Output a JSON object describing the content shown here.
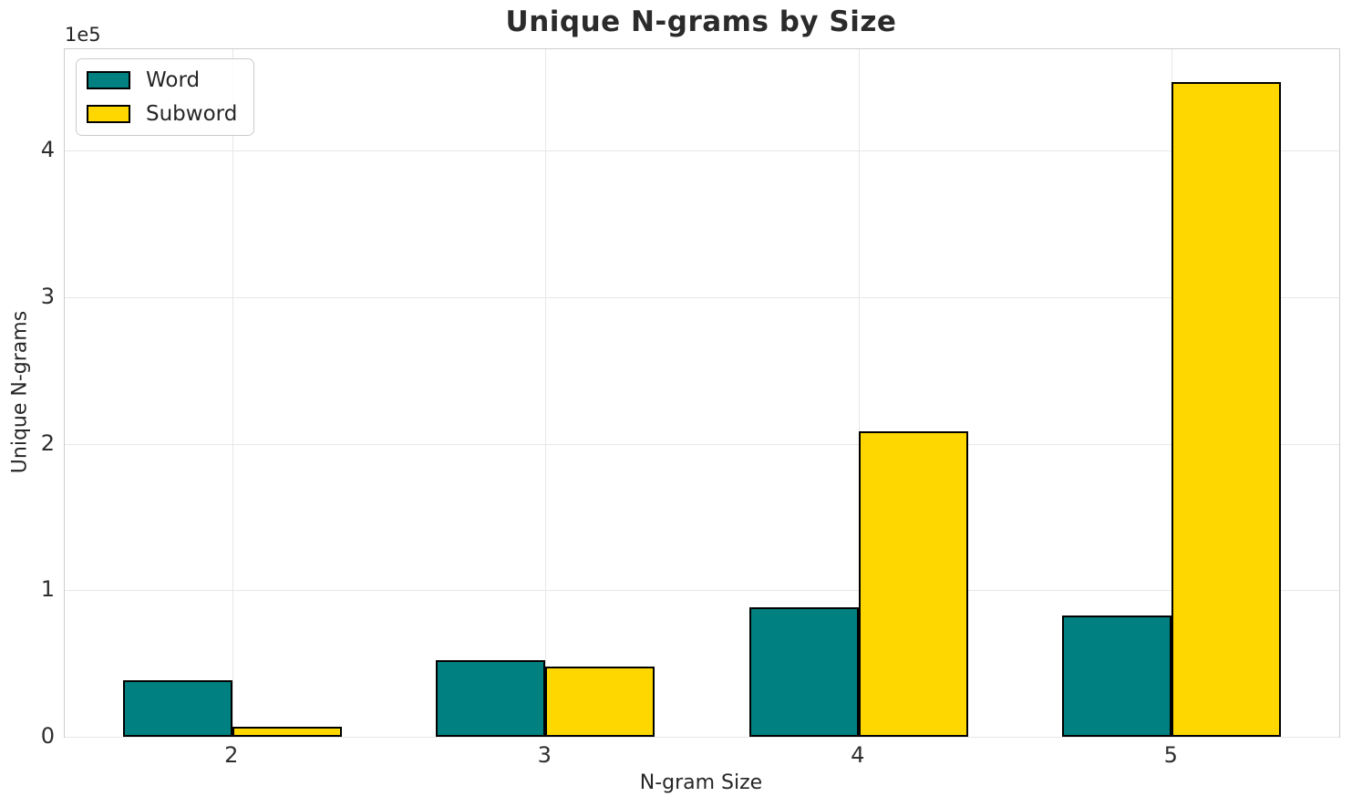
{
  "chart_data": {
    "type": "bar",
    "title": "Unique N-grams by Size",
    "xlabel": "N-gram Size",
    "ylabel": "Unique N-grams",
    "offset_text": "1e5",
    "categories": [
      "2",
      "3",
      "4",
      "5"
    ],
    "series": [
      {
        "name": "Word",
        "color": "#008080",
        "values": [
          38500,
          52500,
          88500,
          83000
        ]
      },
      {
        "name": "Subword",
        "color": "#FFD700",
        "values": [
          7000,
          48000,
          208500,
          447000
        ]
      }
    ],
    "bar_edge_color": "#000000",
    "ylim": [
      0,
      469350
    ],
    "yticks": [
      0,
      100000,
      200000,
      300000,
      400000
    ],
    "ytick_labels": [
      "0",
      "1",
      "2",
      "3",
      "4"
    ],
    "grid": true,
    "legend_position": "upper left",
    "colors": {
      "grid": "#e7e7e7",
      "spine": "#cdcdcd",
      "text": "#262626",
      "background": "#ffffff"
    }
  }
}
